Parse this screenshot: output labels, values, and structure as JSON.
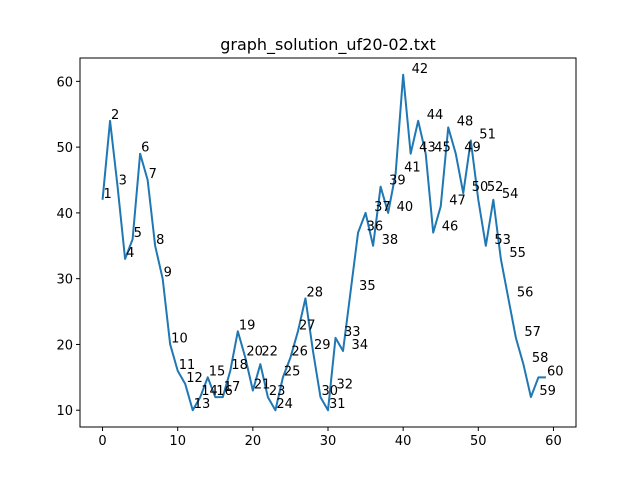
{
  "chart_data": {
    "type": "line",
    "title": "graph_solution_uf20-02.txt",
    "xlabel": "",
    "ylabel": "",
    "xlim": [
      -3,
      63
    ],
    "ylim": [
      7.45,
      63.55
    ],
    "xticks": [
      0,
      10,
      20,
      30,
      40,
      50,
      60
    ],
    "yticks": [
      10,
      20,
      30,
      40,
      50,
      60
    ],
    "grid": false,
    "series_color": "#1f77b4",
    "series": [
      {
        "x": [
          0,
          1,
          2,
          3,
          4,
          5,
          6,
          7,
          8,
          9,
          10,
          11,
          12,
          13,
          14,
          15,
          16,
          17,
          18,
          19,
          20,
          21,
          22,
          23,
          24,
          25,
          26,
          27,
          28,
          29,
          30,
          31,
          32,
          33,
          34,
          35,
          36,
          37,
          38,
          39,
          40,
          41,
          42,
          43,
          44,
          45,
          46,
          47,
          48,
          49,
          50,
          51,
          52,
          53,
          54,
          55,
          56,
          57,
          58,
          59
        ],
        "values": [
          42,
          54,
          44,
          33,
          36,
          49,
          45,
          35,
          30,
          20,
          16,
          14,
          10,
          12,
          15,
          12,
          12,
          16,
          22,
          18,
          13,
          17,
          12,
          10,
          15,
          18,
          22,
          27,
          19,
          12,
          10,
          21,
          19,
          28,
          37,
          40,
          35,
          44,
          40,
          46,
          61,
          49,
          54,
          49,
          37,
          41,
          53,
          49,
          43,
          51,
          42,
          35,
          42,
          33,
          27,
          21,
          17,
          12,
          15,
          15
        ]
      }
    ],
    "point_labels": [
      "1",
      "2",
      "3",
      "4",
      "5",
      "6",
      "7",
      "8",
      "9",
      "10",
      "11",
      "12",
      "13",
      "14",
      "15",
      "16",
      "17",
      "18",
      "19",
      "20",
      "21",
      "22",
      "23",
      "24",
      "25",
      "26",
      "27",
      "28",
      "29",
      "30",
      "31",
      "32",
      "33",
      "34",
      "35",
      "36",
      "37",
      "38",
      "39",
      "40",
      "41",
      "42",
      "43",
      "44",
      "45",
      "46",
      "47",
      "48",
      "49",
      "50",
      "51",
      "52",
      "53",
      "54",
      "55",
      "56",
      "57",
      "58",
      "59",
      "60"
    ],
    "label_positions": [
      [
        0,
        42
      ],
      [
        1,
        54
      ],
      [
        2,
        44
      ],
      [
        3,
        33
      ],
      [
        4,
        36
      ],
      [
        5,
        49
      ],
      [
        6,
        45
      ],
      [
        7,
        35
      ],
      [
        8,
        30
      ],
      [
        9,
        20
      ],
      [
        10,
        16
      ],
      [
        11,
        14
      ],
      [
        12,
        10
      ],
      [
        13,
        12
      ],
      [
        14,
        15
      ],
      [
        15,
        12
      ],
      [
        16,
        12.6
      ],
      [
        17,
        16
      ],
      [
        18,
        22
      ],
      [
        19,
        18
      ],
      [
        20,
        13
      ],
      [
        21,
        18
      ],
      [
        22,
        12
      ],
      [
        23,
        10
      ],
      [
        24,
        15
      ],
      [
        25,
        18
      ],
      [
        26,
        22
      ],
      [
        27,
        27
      ],
      [
        28,
        19
      ],
      [
        29,
        12
      ],
      [
        30,
        10
      ],
      [
        31,
        13
      ],
      [
        32,
        21
      ],
      [
        33,
        19
      ],
      [
        34,
        28
      ],
      [
        35,
        37
      ],
      [
        36,
        40
      ],
      [
        37,
        35
      ],
      [
        38,
        44
      ],
      [
        39,
        40
      ],
      [
        40,
        46
      ],
      [
        41,
        61
      ],
      [
        42,
        49
      ],
      [
        43,
        54
      ],
      [
        44,
        49
      ],
      [
        45,
        37
      ],
      [
        46,
        41
      ],
      [
        47,
        53
      ],
      [
        48,
        49
      ],
      [
        49,
        43
      ],
      [
        50,
        51
      ],
      [
        51,
        43
      ],
      [
        52,
        35
      ],
      [
        53,
        42
      ],
      [
        54,
        33
      ],
      [
        55,
        27
      ],
      [
        56,
        21
      ],
      [
        57,
        17
      ],
      [
        58,
        12
      ],
      [
        59,
        15
      ]
    ]
  }
}
